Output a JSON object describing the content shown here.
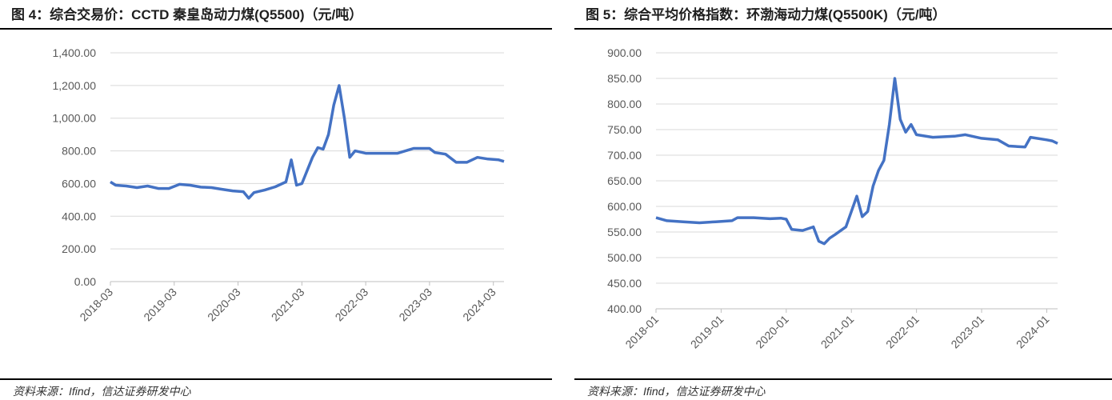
{
  "chart_data": [
    {
      "type": "line",
      "title": "图 4：综合交易价：CCTD 秦皇岛动力煤(Q5500)（元/吨）",
      "source": "资料来源：Ifind，信达证券研发中心",
      "xlim": [
        "2018-03",
        "2024-05"
      ],
      "xticks": [
        "2018-03",
        "2019-03",
        "2020-03",
        "2021-03",
        "2022-03",
        "2023-03",
        "2024-03"
      ],
      "ylim": [
        0,
        1400
      ],
      "yticks": [
        {
          "value": 0,
          "label": "0.00"
        },
        {
          "value": 200,
          "label": "200.00"
        },
        {
          "value": 400,
          "label": "400.00"
        },
        {
          "value": 600,
          "label": "600.00"
        },
        {
          "value": 800,
          "label": "800.00"
        },
        {
          "value": 1000,
          "label": "1,000.00"
        },
        {
          "value": 1200,
          "label": "1,200.00"
        },
        {
          "value": 1400,
          "label": "1,400.00"
        }
      ],
      "grid": true,
      "series": [
        {
          "color": "#4472c4",
          "x": [
            "2018-03",
            "2018-04",
            "2018-06",
            "2018-08",
            "2018-10",
            "2018-12",
            "2019-02",
            "2019-04",
            "2019-06",
            "2019-08",
            "2019-10",
            "2019-12",
            "2020-02",
            "2020-04",
            "2020-05",
            "2020-06",
            "2020-08",
            "2020-10",
            "2020-12",
            "2021-01",
            "2021-02",
            "2021-03",
            "2021-05",
            "2021-06",
            "2021-07",
            "2021-08",
            "2021-09",
            "2021-10",
            "2021-11",
            "2021-12",
            "2022-01",
            "2022-03",
            "2022-06",
            "2022-09",
            "2022-12",
            "2023-03",
            "2023-04",
            "2023-06",
            "2023-08",
            "2023-10",
            "2023-12",
            "2024-02",
            "2024-04",
            "2024-05"
          ],
          "values": [
            610,
            590,
            585,
            575,
            585,
            570,
            570,
            595,
            590,
            578,
            575,
            565,
            555,
            550,
            510,
            545,
            560,
            580,
            610,
            745,
            590,
            600,
            760,
            820,
            810,
            900,
            1080,
            1200,
            1000,
            760,
            800,
            785,
            785,
            785,
            815,
            815,
            790,
            780,
            730,
            730,
            760,
            750,
            745,
            735
          ]
        }
      ]
    },
    {
      "type": "line",
      "title": "图 5：综合平均价格指数：环渤海动力煤(Q5500K)（元/吨）",
      "source": "资料来源：Ifind，信达证券研发中心",
      "xlim": [
        "2018-01",
        "2024-03"
      ],
      "xticks": [
        "2018-01",
        "2019-01",
        "2020-01",
        "2021-01",
        "2022-01",
        "2023-01",
        "2024-01"
      ],
      "ylim": [
        400,
        900
      ],
      "yticks": [
        {
          "value": 400,
          "label": "400.00"
        },
        {
          "value": 450,
          "label": "450.00"
        },
        {
          "value": 500,
          "label": "500.00"
        },
        {
          "value": 550,
          "label": "550.00"
        },
        {
          "value": 600,
          "label": "600.00"
        },
        {
          "value": 650,
          "label": "650.00"
        },
        {
          "value": 700,
          "label": "700.00"
        },
        {
          "value": 750,
          "label": "750.00"
        },
        {
          "value": 800,
          "label": "800.00"
        },
        {
          "value": 850,
          "label": "850.00"
        },
        {
          "value": 900,
          "label": "900.00"
        }
      ],
      "grid": true,
      "series": [
        {
          "color": "#4472c4",
          "x": [
            "2018-01",
            "2018-03",
            "2018-06",
            "2018-09",
            "2018-12",
            "2019-03",
            "2019-04",
            "2019-07",
            "2019-10",
            "2019-12",
            "2020-01",
            "2020-02",
            "2020-04",
            "2020-06",
            "2020-07",
            "2020-08",
            "2020-09",
            "2020-10",
            "2020-12",
            "2021-01",
            "2021-02",
            "2021-03",
            "2021-04",
            "2021-05",
            "2021-06",
            "2021-07",
            "2021-08",
            "2021-09",
            "2021-10",
            "2021-11",
            "2021-12",
            "2022-01",
            "2022-04",
            "2022-08",
            "2022-10",
            "2023-01",
            "2023-04",
            "2023-06",
            "2023-09",
            "2023-10",
            "2024-01",
            "2024-02",
            "2024-03"
          ],
          "values": [
            578,
            572,
            570,
            568,
            570,
            572,
            578,
            578,
            576,
            577,
            575,
            555,
            553,
            560,
            532,
            527,
            538,
            545,
            560,
            590,
            620,
            580,
            590,
            640,
            670,
            690,
            760,
            850,
            770,
            745,
            760,
            740,
            735,
            737,
            740,
            733,
            730,
            718,
            716,
            735,
            730,
            728,
            723
          ]
        }
      ]
    }
  ]
}
